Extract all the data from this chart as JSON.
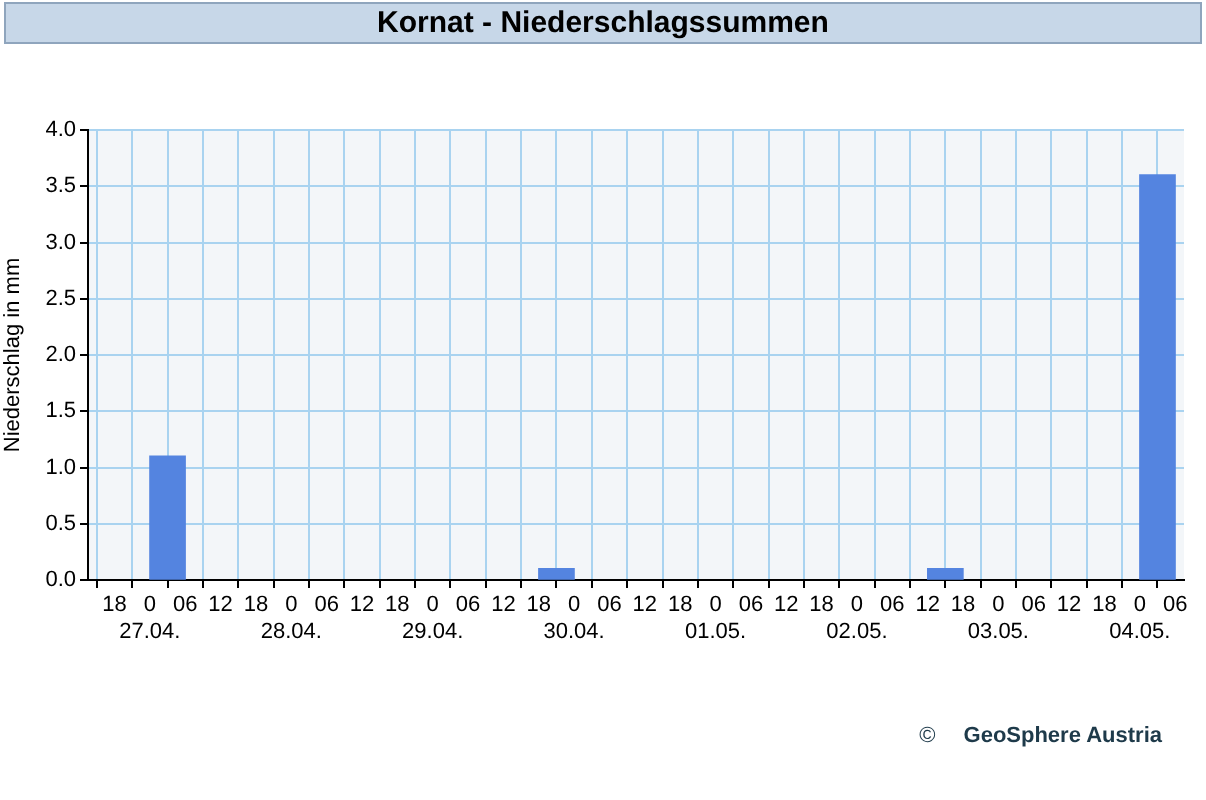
{
  "chart_data": {
    "type": "bar",
    "title": "Kornat - Niederschlagssummen",
    "ylabel": "Niederschlag in mm",
    "x": [
      "--04-27T03:00",
      "--04-29T21:00",
      "--05-02T15:00",
      "--05-04T03:00"
    ],
    "values": [
      1.1,
      0.1,
      0.1,
      3.6
    ],
    "color": "#5484e0",
    "xlim": [
      "--04-26T13:30",
      "--05-04T07:30"
    ],
    "xticks": [
      {
        "value": "--04-26T18:00",
        "label": "18"
      },
      {
        "value": "--04-27T00:00",
        "label": "0\n27.04."
      },
      {
        "value": "--04-27T06:00",
        "label": "06"
      },
      {
        "value": "--04-27T12:00",
        "label": "12"
      },
      {
        "value": "--04-27T18:00",
        "label": "18"
      },
      {
        "value": "--04-28T00:00",
        "label": "0\n28.04."
      },
      {
        "value": "--04-28T06:00",
        "label": "06"
      },
      {
        "value": "--04-28T12:00",
        "label": "12"
      },
      {
        "value": "--04-28T18:00",
        "label": "18"
      },
      {
        "value": "--04-29T00:00",
        "label": "0\n29.04."
      },
      {
        "value": "--04-29T06:00",
        "label": "06"
      },
      {
        "value": "--04-29T12:00",
        "label": "12"
      },
      {
        "value": "--04-29T18:00",
        "label": "18"
      },
      {
        "value": "--04-30T00:00",
        "label": "0\n30.04."
      },
      {
        "value": "--04-30T06:00",
        "label": "06"
      },
      {
        "value": "--04-30T12:00",
        "label": "12"
      },
      {
        "value": "--04-30T18:00",
        "label": "18"
      },
      {
        "value": "--05-01T00:00",
        "label": "0\n01.05."
      },
      {
        "value": "--05-01T06:00",
        "label": "06"
      },
      {
        "value": "--05-01T12:00",
        "label": "12"
      },
      {
        "value": "--05-01T18:00",
        "label": "18"
      },
      {
        "value": "--05-02T00:00",
        "label": "0\n02.05."
      },
      {
        "value": "--05-02T06:00",
        "label": "06"
      },
      {
        "value": "--05-02T12:00",
        "label": "12"
      },
      {
        "value": "--05-02T18:00",
        "label": "18"
      },
      {
        "value": "--05-03T00:00",
        "label": "0\n03.05."
      },
      {
        "value": "--05-03T06:00",
        "label": "06"
      },
      {
        "value": "--05-03T12:00",
        "label": "12"
      },
      {
        "value": "--05-03T18:00",
        "label": "18"
      },
      {
        "value": "--05-04T00:00",
        "label": "0\n04.05."
      },
      {
        "value": "--05-04T06:00",
        "label": "06"
      }
    ],
    "ylim": [
      0,
      4
    ],
    "yticks": [
      {
        "value": 0,
        "label": "0.0"
      },
      {
        "value": 0.5,
        "label": "0.5"
      },
      {
        "value": 1,
        "label": "1.0"
      },
      {
        "value": 1.5,
        "label": "1.5"
      },
      {
        "value": 2,
        "label": "2.0"
      },
      {
        "value": 2.5,
        "label": "2.5"
      },
      {
        "value": 3,
        "label": "3.0"
      },
      {
        "value": 3.5,
        "label": "3.5"
      },
      {
        "value": 4,
        "label": "4.0"
      }
    ],
    "grid": true,
    "annotations": [
      "©",
      "GeoSphere Austria"
    ]
  }
}
